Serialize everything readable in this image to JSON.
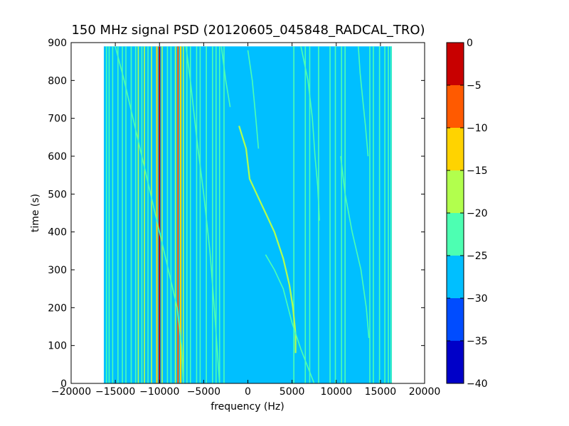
{
  "chart_data": {
    "type": "heatmap",
    "subtype": "filled-contour spectrogram",
    "title": "150 MHz signal PSD (20120605_045848_RADCAL_TRO)",
    "xlabel": "frequency (Hz)",
    "ylabel": "time (s)",
    "xlim": [
      -20000,
      20000
    ],
    "ylim": [
      0,
      900
    ],
    "x_ticks": [
      -20000,
      -15000,
      -10000,
      -5000,
      0,
      5000,
      10000,
      15000,
      20000
    ],
    "x_tick_labels": [
      "−20000",
      "−15000",
      "−10000",
      "−5000",
      "0",
      "5000",
      "10000",
      "15000",
      "20000"
    ],
    "y_ticks": [
      0,
      100,
      200,
      300,
      400,
      500,
      600,
      700,
      800,
      900
    ],
    "y_tick_labels": [
      "0",
      "100",
      "200",
      "300",
      "400",
      "500",
      "600",
      "700",
      "800",
      "900"
    ],
    "data_extent": {
      "freq_min": -16300,
      "freq_max": 16300,
      "time_min": 0,
      "time_max": 890
    },
    "grid": false,
    "colorbar": {
      "levels": [
        -40,
        -35,
        -30,
        -25,
        -20,
        -15,
        -10,
        -5,
        0
      ],
      "tick_labels": [
        "−40",
        "−35",
        "−30",
        "−25",
        "−20",
        "−15",
        "−10",
        "−5",
        "0"
      ],
      "colors": [
        "#0000c8",
        "#004cff",
        "#00bfff",
        "#4dffb2",
        "#b2ff4d",
        "#ffd300",
        "#ff5a00",
        "#c80000"
      ]
    },
    "background_level_band": [
      -30,
      -25
    ],
    "vertical_lines": [
      {
        "freq": -16000,
        "band": 3
      },
      {
        "freq": -15700,
        "band": 3
      },
      {
        "freq": -15300,
        "band": 3
      },
      {
        "freq": -14700,
        "band": 3
      },
      {
        "freq": -14200,
        "band": 3
      },
      {
        "freq": -13800,
        "band": 3
      },
      {
        "freq": -13200,
        "band": 3
      },
      {
        "freq": -12700,
        "band": 3
      },
      {
        "freq": -12400,
        "band": 4
      },
      {
        "freq": -12000,
        "band": 3
      },
      {
        "freq": -11700,
        "band": 4
      },
      {
        "freq": -11300,
        "band": 3
      },
      {
        "freq": -10900,
        "band": 4
      },
      {
        "freq": -10300,
        "band": 5
      },
      {
        "freq": -10000,
        "band": 7
      },
      {
        "freq": -9700,
        "band": 4
      },
      {
        "freq": -9100,
        "band": 3
      },
      {
        "freq": -8700,
        "band": 3
      },
      {
        "freq": -8200,
        "band": 4
      },
      {
        "freq": -7900,
        "band": 6
      },
      {
        "freq": -7600,
        "band": 5
      },
      {
        "freq": -7300,
        "band": 4
      },
      {
        "freq": -6900,
        "band": 3
      },
      {
        "freq": -6500,
        "band": 3
      },
      {
        "freq": -5800,
        "band": 3
      },
      {
        "freq": -5400,
        "band": 3
      },
      {
        "freq": -4700,
        "band": 3
      },
      {
        "freq": -4000,
        "band": 3
      },
      {
        "freq": -3600,
        "band": 3
      },
      {
        "freq": -3200,
        "band": 3
      },
      {
        "freq": -2700,
        "band": 3
      },
      {
        "freq": 5200,
        "band": 3
      },
      {
        "freq": 6500,
        "band": 3
      },
      {
        "freq": 7000,
        "band": 3
      },
      {
        "freq": 8000,
        "band": 3
      },
      {
        "freq": 9300,
        "band": 3
      },
      {
        "freq": 9900,
        "band": 3
      },
      {
        "freq": 10600,
        "band": 3
      },
      {
        "freq": 11000,
        "band": 3
      },
      {
        "freq": 13800,
        "band": 3
      },
      {
        "freq": 14200,
        "band": 3
      },
      {
        "freq": 14900,
        "band": 3
      },
      {
        "freq": 15500,
        "band": 3
      },
      {
        "freq": 15900,
        "band": 3
      },
      {
        "freq": 16200,
        "band": 3
      }
    ],
    "traces": [
      {
        "band": 3,
        "points": [
          [
            -15000,
            890
          ],
          [
            -14000,
            800
          ],
          [
            -13000,
            700
          ],
          [
            -12000,
            600
          ],
          [
            -10500,
            450
          ],
          [
            -9000,
            300
          ],
          [
            -8000,
            200
          ],
          [
            -7500,
            100
          ],
          [
            -7300,
            0
          ]
        ]
      },
      {
        "band": 3,
        "points": [
          [
            -7000,
            890
          ],
          [
            -6500,
            800
          ],
          [
            -5800,
            650
          ],
          [
            -5000,
            500
          ],
          [
            -4300,
            350
          ],
          [
            -3800,
            200
          ],
          [
            -3500,
            100
          ],
          [
            -3200,
            0
          ]
        ]
      },
      {
        "band": 4,
        "points": [
          [
            -1000,
            680
          ],
          [
            -200,
            620
          ],
          [
            0,
            580
          ],
          [
            200,
            540
          ],
          [
            1000,
            500
          ],
          [
            2000,
            450
          ],
          [
            3000,
            400
          ],
          [
            4000,
            330
          ],
          [
            4700,
            260
          ],
          [
            5100,
            200
          ],
          [
            5400,
            130
          ],
          [
            5400,
            80
          ]
        ]
      },
      {
        "band": 3,
        "points": [
          [
            0,
            880
          ],
          [
            500,
            800
          ],
          [
            900,
            700
          ],
          [
            1200,
            620
          ]
        ]
      },
      {
        "band": 3,
        "points": [
          [
            2000,
            340
          ],
          [
            3000,
            300
          ],
          [
            4000,
            250
          ],
          [
            5000,
            160
          ],
          [
            6000,
            90
          ],
          [
            7000,
            30
          ],
          [
            7500,
            0
          ]
        ]
      },
      {
        "band": 3,
        "points": [
          [
            6000,
            890
          ],
          [
            6800,
            800
          ],
          [
            7300,
            700
          ],
          [
            7600,
            600
          ],
          [
            7900,
            520
          ],
          [
            8100,
            430
          ]
        ]
      },
      {
        "band": 3,
        "points": [
          [
            12500,
            890
          ],
          [
            12700,
            820
          ],
          [
            13000,
            750
          ],
          [
            13300,
            680
          ],
          [
            13600,
            600
          ]
        ]
      },
      {
        "band": 3,
        "points": [
          [
            -3000,
            890
          ],
          [
            -2500,
            800
          ],
          [
            -2000,
            730
          ]
        ]
      },
      {
        "band": 3,
        "points": [
          [
            10500,
            600
          ],
          [
            11000,
            500
          ],
          [
            11800,
            400
          ],
          [
            12800,
            300
          ],
          [
            13400,
            200
          ],
          [
            13700,
            120
          ]
        ]
      }
    ]
  }
}
